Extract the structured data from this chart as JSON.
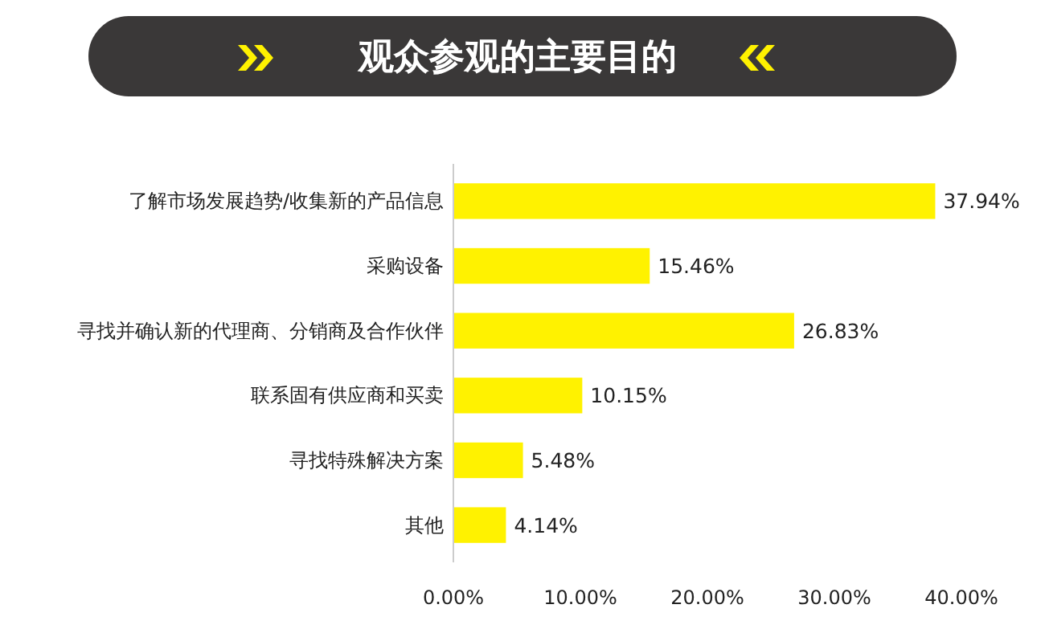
{
  "chart_data": {
    "type": "bar",
    "orientation": "horizontal",
    "title": "观众参观的主要目的",
    "categories": [
      "了解市场发展趋势/收集新的产品信息",
      "采购设备",
      "寻找并确认新的代理商、分销商及合作伙伴",
      "联系固有供应商和买卖",
      "寻找特殊解决方案",
      "其他"
    ],
    "values": [
      37.94,
      15.46,
      26.83,
      10.15,
      5.48,
      4.14
    ],
    "value_labels": [
      "37.94%",
      "15.46%",
      "26.83%",
      "10.15%",
      "5.48%",
      "4.14%"
    ],
    "color": "#fff200",
    "xlim": [
      0,
      40
    ],
    "xticks": [
      {
        "value": 0,
        "label": "0.00%"
      },
      {
        "value": 10,
        "label": "10.00%"
      },
      {
        "value": 20,
        "label": "20.00%"
      },
      {
        "value": 30,
        "label": "30.00%"
      },
      {
        "value": 40,
        "label": "40.00%"
      }
    ],
    "grid": false
  }
}
